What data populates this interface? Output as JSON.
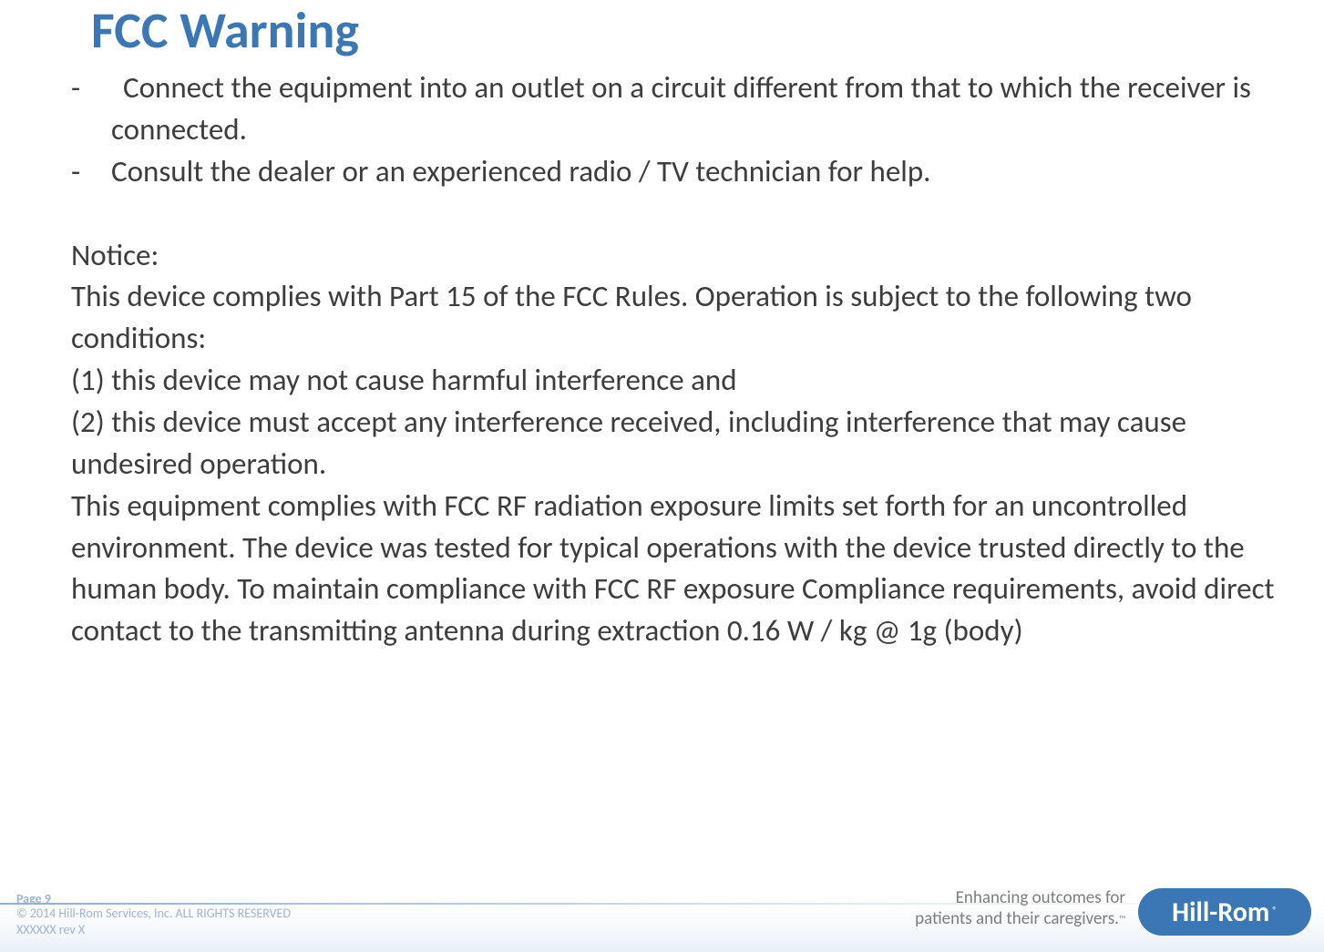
{
  "colors": {
    "title": "#3c77b5",
    "body_text": "#3d3d3d",
    "footer_text": "#9fb4cd",
    "tagline_text": "#7d7d7d",
    "logo_bg": "#3c77b5",
    "logo_text": "#ffffff",
    "footer_line_start": "#90aed2",
    "footer_line_end": "#ffffff",
    "background": "#ffffff"
  },
  "typography": {
    "title_fontsize": 56,
    "title_weight": 700,
    "body_fontsize": 33,
    "body_line_height": 1.39,
    "footer_small_fontsize": 14,
    "tagline_fontsize": 19,
    "logo_fontsize": 30,
    "font_family": "Calibri"
  },
  "title": "FCC Warning",
  "bullets": [
    "Connect the equipment into an outlet on a circuit different from that to which the receiver is connected.",
    "Consult the dealer or an experienced radio / TV technician for help."
  ],
  "notice_label": "Notice:",
  "notice_body": "This device complies with Part 15 of the FCC Rules. Operation is subject to the following two conditions:\n(1) this device may not cause harmful interference and\n(2) this device must accept any interference received, including interference that may cause undesired operation.\nThis equipment complies with FCC RF radiation exposure limits set forth for an uncontrolled environment. The device was tested for typical operations with the device trusted directly to the human body. To maintain compliance with FCC RF exposure Compliance requirements, avoid direct contact to the transmitting antenna during extraction 0.16 W / kg @ 1g (body)",
  "footer": {
    "page": "Page 9",
    "copyright_line1": "© 2014 Hill-Rom Services, Inc. ALL RIGHTS RESERVED",
    "copyright_line2": "XXXXXX  rev X",
    "tagline_line1": "Enhancing outcomes for",
    "tagline_line2": "patients and their caregivers.",
    "logo_text": "Hill-Rom"
  }
}
